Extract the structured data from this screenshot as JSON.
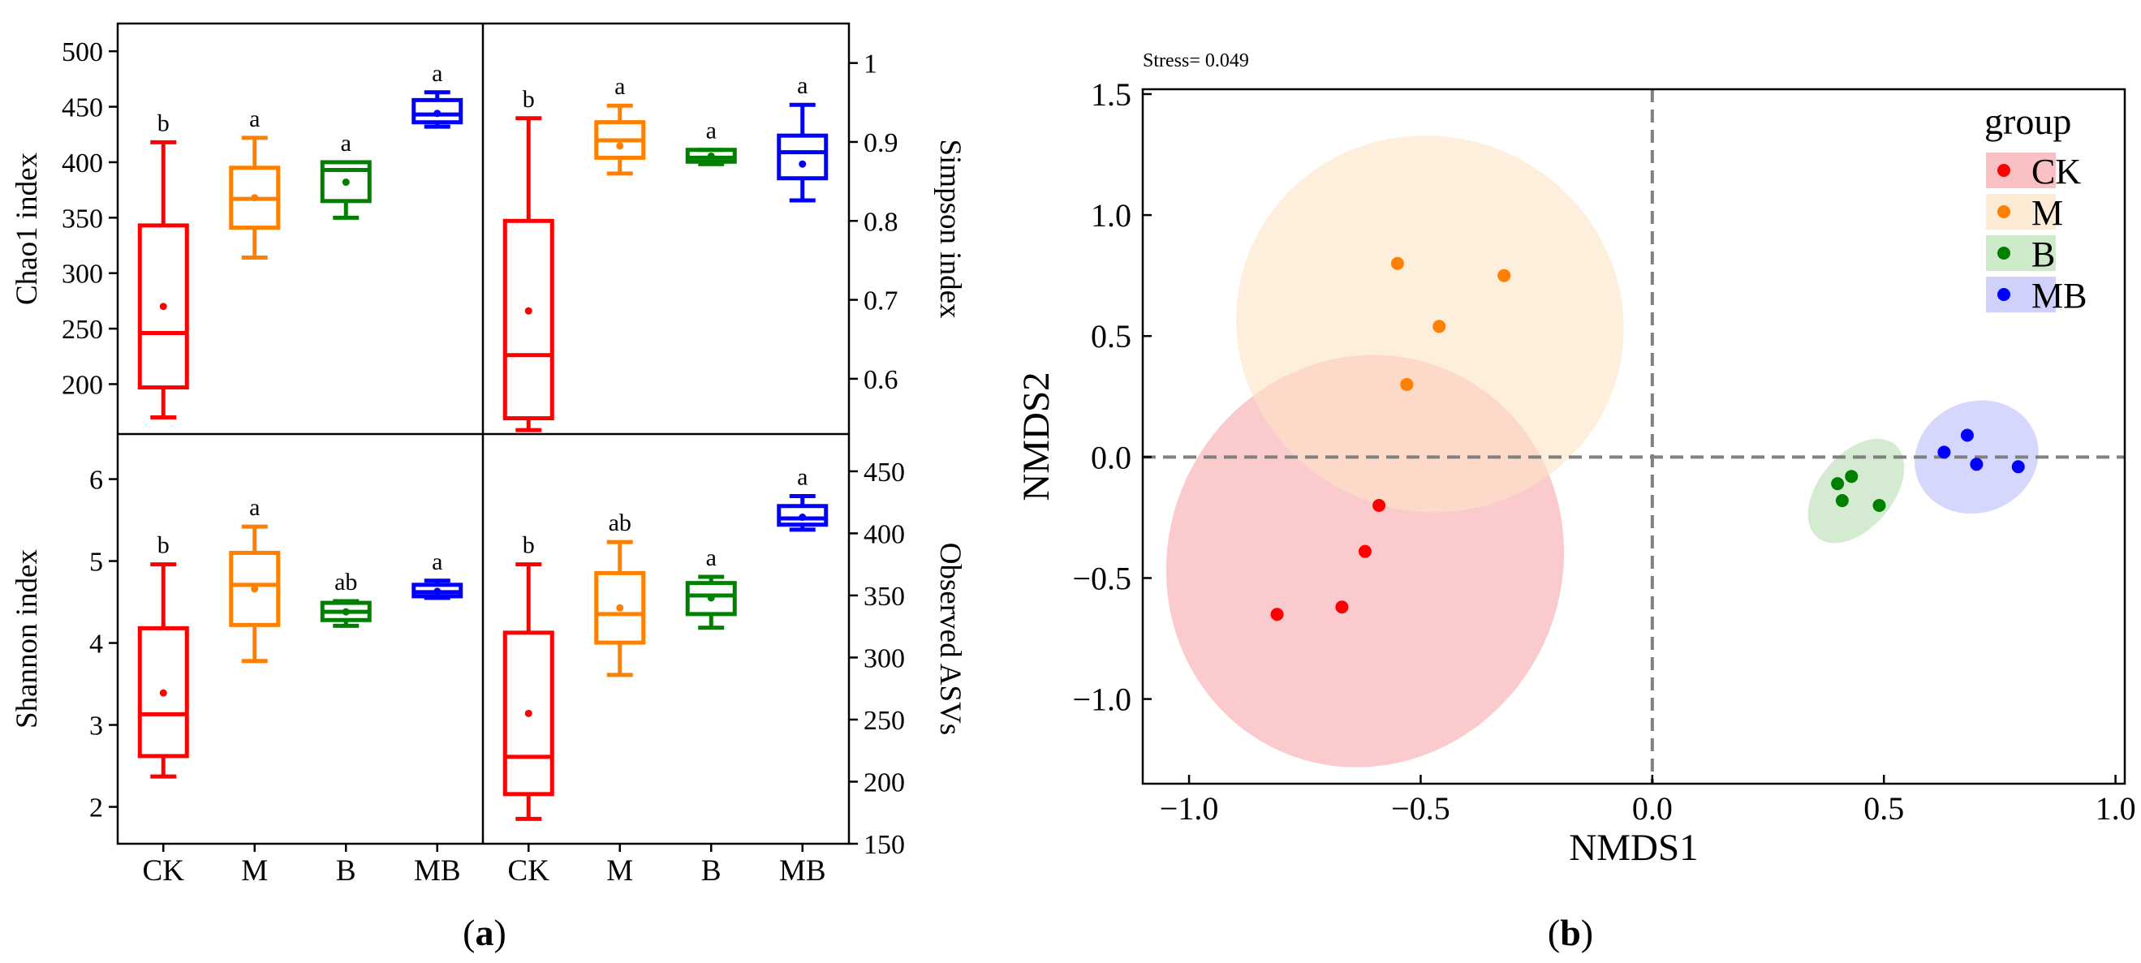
{
  "figure": {
    "panel_a_label": "a",
    "panel_b_label": "b"
  },
  "colors": {
    "CK": "#ff0000",
    "M": "#ff8000",
    "B": "#008000",
    "MB": "#0000ff",
    "CK_fill": "#f7a6aa",
    "M_fill": "#fde3c5",
    "B_fill": "#b9deb3",
    "MB_fill": "#babcfb",
    "axis": "#000000",
    "refline": "#808080"
  },
  "chart_data": [
    {
      "type": "box",
      "panel": "a-top-left",
      "ylabel": "Chao1 index",
      "ylim": [
        155,
        525
      ],
      "yticks": [
        200,
        250,
        300,
        350,
        400,
        450,
        500
      ],
      "y_axis_side": "left",
      "categories": [
        "CK",
        "M",
        "B",
        "MB"
      ],
      "boxes": [
        {
          "group": "CK",
          "min": 170,
          "q1": 197,
          "median": 246,
          "q3": 343,
          "max": 418,
          "mean": 270,
          "letter": "b"
        },
        {
          "group": "M",
          "min": 314,
          "q1": 341,
          "median": 367,
          "q3": 395,
          "max": 422,
          "mean": 368,
          "letter": "a"
        },
        {
          "group": "B",
          "min": 350,
          "q1": 365,
          "median": 393,
          "q3": 400,
          "max": 400,
          "mean": 382,
          "letter": "a"
        },
        {
          "group": "MB",
          "min": 432,
          "q1": 436,
          "median": 443,
          "q3": 456,
          "max": 463,
          "mean": 444,
          "letter": "a"
        }
      ]
    },
    {
      "type": "box",
      "panel": "a-top-right",
      "ylabel": "Simpson index",
      "ylim": [
        0.53,
        1.05
      ],
      "yticks": [
        0.6,
        0.7,
        0.8,
        0.9,
        1.0
      ],
      "y_axis_side": "right",
      "categories": [
        "CK",
        "M",
        "B",
        "MB"
      ],
      "boxes": [
        {
          "group": "CK",
          "min": 0.535,
          "q1": 0.55,
          "median": 0.63,
          "q3": 0.8,
          "max": 0.93,
          "mean": 0.686,
          "letter": "b"
        },
        {
          "group": "M",
          "min": 0.86,
          "q1": 0.88,
          "median": 0.902,
          "q3": 0.925,
          "max": 0.946,
          "mean": 0.895,
          "letter": "a"
        },
        {
          "group": "B",
          "min": 0.872,
          "q1": 0.875,
          "median": 0.88,
          "q3": 0.89,
          "max": 0.89,
          "mean": 0.882,
          "letter": "a"
        },
        {
          "group": "MB",
          "min": 0.826,
          "q1": 0.854,
          "median": 0.887,
          "q3": 0.908,
          "max": 0.947,
          "mean": 0.872,
          "letter": "a"
        }
      ]
    },
    {
      "type": "box",
      "panel": "a-bottom-left",
      "ylabel": "Shannon index",
      "ylim": [
        1.55,
        6.55
      ],
      "yticks": [
        2,
        3,
        4,
        5,
        6
      ],
      "y_axis_side": "left",
      "categories": [
        "CK",
        "M",
        "B",
        "MB"
      ],
      "boxes": [
        {
          "group": "CK",
          "min": 2.37,
          "q1": 2.62,
          "median": 3.13,
          "q3": 4.18,
          "max": 4.96,
          "mean": 3.39,
          "letter": "b"
        },
        {
          "group": "M",
          "min": 3.78,
          "q1": 4.22,
          "median": 4.71,
          "q3": 5.1,
          "max": 5.42,
          "mean": 4.66,
          "letter": "a"
        },
        {
          "group": "B",
          "min": 4.21,
          "q1": 4.28,
          "median": 4.38,
          "q3": 4.49,
          "max": 4.51,
          "mean": 4.38,
          "letter": "ab"
        },
        {
          "group": "MB",
          "min": 4.55,
          "q1": 4.57,
          "median": 4.62,
          "q3": 4.71,
          "max": 4.76,
          "mean": 4.63,
          "letter": "a"
        }
      ]
    },
    {
      "type": "box",
      "panel": "a-bottom-right",
      "ylabel": "Observed ASVs",
      "ylim": [
        150,
        480
      ],
      "yticks": [
        150,
        200,
        250,
        300,
        350,
        400,
        450
      ],
      "y_axis_side": "right",
      "categories": [
        "CK",
        "M",
        "B",
        "MB"
      ],
      "boxes": [
        {
          "group": "CK",
          "min": 170,
          "q1": 190,
          "median": 220,
          "q3": 320,
          "max": 375,
          "mean": 255,
          "letter": "b"
        },
        {
          "group": "M",
          "min": 286,
          "q1": 312,
          "median": 335,
          "q3": 368,
          "max": 393,
          "mean": 340,
          "letter": "ab"
        },
        {
          "group": "B",
          "min": 324,
          "q1": 335,
          "median": 350,
          "q3": 360,
          "max": 365,
          "mean": 348,
          "letter": "a"
        },
        {
          "group": "MB",
          "min": 403,
          "q1": 407,
          "median": 412,
          "q3": 422,
          "max": 430,
          "mean": 413,
          "letter": "a"
        }
      ]
    },
    {
      "type": "scatter",
      "panel": "b",
      "title": "Stress= 0.049",
      "xlabel": "NMDS1",
      "ylabel": "NMDS2",
      "xlim": [
        -1.1,
        1.02
      ],
      "ylim": [
        -1.35,
        1.52
      ],
      "xticks": [
        -1.0,
        -0.5,
        0.0,
        0.5,
        1.0
      ],
      "yticks": [
        -1.0,
        -0.5,
        0.0,
        0.5,
        1.0,
        1.5
      ],
      "legend_title": "group",
      "legend_position": "top-right",
      "reference_lines": {
        "x": 0,
        "y": 0
      },
      "series": [
        {
          "name": "CK",
          "points": [
            [
              -0.81,
              -0.65
            ],
            [
              -0.67,
              -0.62
            ],
            [
              -0.62,
              -0.39
            ],
            [
              -0.59,
              -0.2
            ]
          ],
          "ellipse": {
            "center": [
              -0.62,
              -0.43
            ],
            "width": 0.85,
            "height": 1.72,
            "angle": 25
          }
        },
        {
          "name": "M",
          "points": [
            [
              -0.55,
              0.8
            ],
            [
              -0.32,
              0.75
            ],
            [
              -0.46,
              0.54
            ],
            [
              -0.53,
              0.3
            ]
          ],
          "ellipse": {
            "center": [
              -0.48,
              0.55
            ],
            "width": 0.84,
            "height": 1.55,
            "angle": 20
          }
        },
        {
          "name": "B",
          "points": [
            [
              0.4,
              -0.11
            ],
            [
              0.43,
              -0.08
            ],
            [
              0.41,
              -0.18
            ],
            [
              0.49,
              -0.2
            ]
          ],
          "ellipse": {
            "center": [
              0.44,
              -0.14
            ],
            "width": 0.16,
            "height": 0.5,
            "angle": 40
          }
        },
        {
          "name": "MB",
          "points": [
            [
              0.63,
              0.02
            ],
            [
              0.68,
              0.09
            ],
            [
              0.7,
              -0.03
            ],
            [
              0.79,
              -0.04
            ]
          ],
          "ellipse": {
            "center": [
              0.7,
              0.0
            ],
            "width": 0.24,
            "height": 0.52,
            "angle": 68
          }
        }
      ]
    }
  ]
}
